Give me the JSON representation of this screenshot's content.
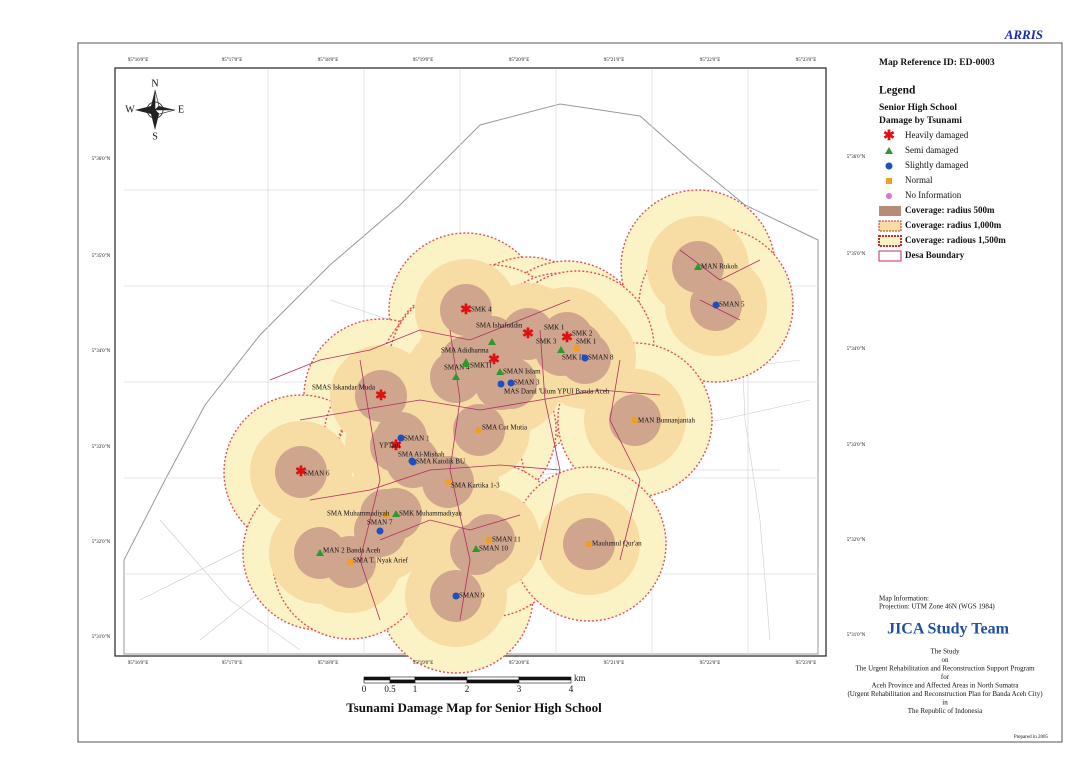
{
  "header": {
    "brand": "ARRIS"
  },
  "map": {
    "lon_labels": [
      "95°16'0\"E",
      "95°17'0\"E",
      "95°18'0\"E",
      "95°19'0\"E",
      "95°20'0\"E",
      "95°21'0\"E",
      "95°22'0\"E",
      "95°23'0\"E"
    ],
    "lat_labels": [
      "5°36'0\"N",
      "5°35'0\"N",
      "5°34'0\"N",
      "5°33'0\"N",
      "5°32'0\"N",
      "5°31'0\"N"
    ],
    "compass": {
      "n": "N",
      "s": "S",
      "e": "E",
      "w": "W"
    },
    "scale": {
      "ticks": [
        "0",
        "0.5",
        "1",
        "2",
        "3",
        "4"
      ],
      "unit": "km"
    },
    "title": "Tsunami Damage Map for Senior High School"
  },
  "sidebar": {
    "map_reference": "Map Reference ID: ED-0003",
    "legend_title": "Legend",
    "legend_subtitle": "Senior High School",
    "legend_group": "Damage by Tsunami",
    "damage_items": [
      {
        "label": "Heavily damaged",
        "schools": [
          "SMK 4",
          "SMK 1",
          "SMK 3",
          "SMK 2",
          "SMAS Iskandar Muda",
          "YPTadi",
          "SMAN 6"
        ]
      },
      {
        "label": "Semi damaged",
        "schools": [
          "SMA Ishafuddin",
          "SMA Adidharma",
          "SMAN 4",
          "SMKTI",
          "SMAN Islam",
          "SMK II",
          "MAN Rukoh",
          "SMK Muhammadiyah",
          "MAN 2 Banda Aceh",
          "SMAN 10"
        ]
      },
      {
        "label": "Slightly damaged",
        "schools": [
          "SMAN 3",
          "MAS Darul 'Ulum YPUI Banda Aceh",
          "SMAN 8",
          "SMAN 5",
          "SMAN 1",
          "SMA Al-Mishah",
          "SMA Katolik BU",
          "SMAN 7",
          "SMAN 9"
        ]
      },
      {
        "label": "Normal",
        "schools": [
          "SMK 1",
          "SMA Cut Mutia",
          "MAN Bunnanjantah",
          "SMA Kartika 1-3",
          "SMA Muhammadiyah",
          "SMA T. Nyak Arief",
          "SMAN 11",
          "Maulumul Qur'an"
        ]
      },
      {
        "label": "No Information",
        "schools": []
      }
    ],
    "coverage_items": [
      "Coverage: radius 500m",
      "Coverage: radius 1,000m",
      "Coverage: radious 1,500m",
      "Desa Boundary"
    ],
    "map_info": [
      "Map Information:",
      "Projection: UTM Zone 46N (WGS 1984)"
    ],
    "team": "JICA Study Team",
    "study_lines": [
      "The Study",
      "on",
      "The Urgent Rehabilitation and Reconstruction Support Program",
      "for",
      "Aceh Province and Affected Areas in North Sumatra",
      "(Urgent Rehabilitation and Reconstruction Plan for Banda Aceh City)",
      "in",
      "The Republic of Indonesia"
    ],
    "prepared": "Prepared in 2005"
  }
}
